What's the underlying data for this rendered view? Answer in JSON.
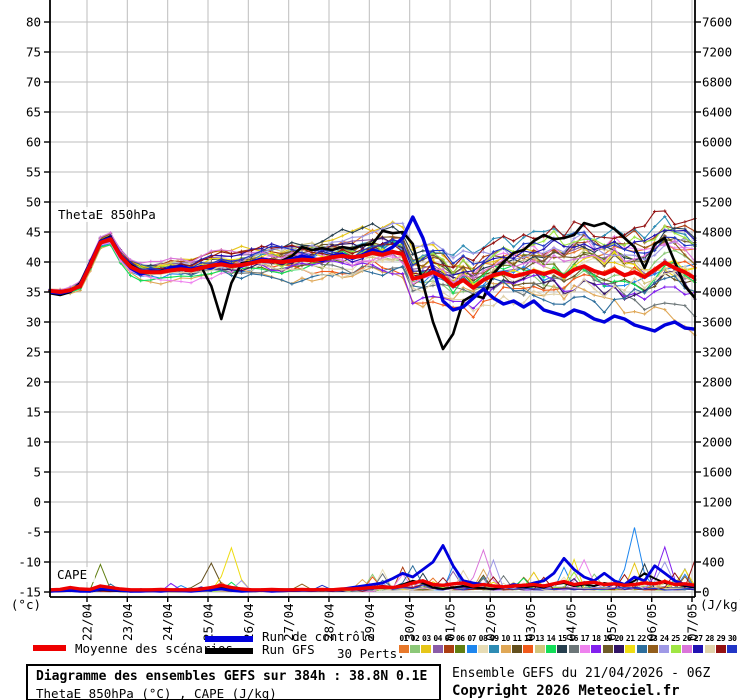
{
  "title_box": {
    "line1": "Diagramme des ensembles GEFS sur 384h : 38.8N 0.1E",
    "line2": "ThetaE 850hPa (°C) , CAPE (J/kg)"
  },
  "credits": {
    "run_info": "Ensemble GEFS du 21/04/2026 - 06Z",
    "copyright": "Copyright 2026 Meteociel.fr"
  },
  "legend": {
    "mean_label": "Moyenne des scénarios",
    "control_label": "Run de contrôle",
    "gfs_label": "Run GFS",
    "perts_label": "30 Perts.",
    "mean_color": "#ee0000",
    "control_color": "#0000dd",
    "gfs_color": "#000000"
  },
  "chart_data": {
    "type": "line",
    "title": "Diagramme des ensembles GEFS sur 384h : 38.8N 0.1E",
    "plot_labels": {
      "left_series": "ThetaE 850hPa",
      "bottom_series": "CAPE"
    },
    "left_axis": {
      "unit": "(°c)",
      "min": -15,
      "max": 80,
      "ticks": [
        80,
        75,
        70,
        65,
        60,
        55,
        50,
        45,
        40,
        35,
        30,
        25,
        20,
        15,
        10,
        5,
        0,
        -5,
        -10,
        -15
      ]
    },
    "right_axis": {
      "unit": "(J/kg)",
      "min": 0,
      "max": 7600,
      "ticks": [
        7600,
        7200,
        6800,
        6400,
        6000,
        5600,
        5200,
        4800,
        4400,
        4000,
        3600,
        3200,
        2800,
        2400,
        2000,
        1600,
        1200,
        800,
        400,
        0
      ]
    },
    "x_labels": [
      "22/04",
      "23/04",
      "24/04",
      "25/04",
      "26/04",
      "27/04",
      "28/04",
      "29/04",
      "30/04",
      "01/05",
      "02/05",
      "03/05",
      "04/05",
      "05/05",
      "06/05",
      "07/05"
    ],
    "steps": 65,
    "grid_color": "#bdbdbd",
    "series": {
      "mean_thetae": [
        35.2,
        35.0,
        35.3,
        36.0,
        39.5,
        43.2,
        43.8,
        41.0,
        39.2,
        38.4,
        38.3,
        38.3,
        38.6,
        38.8,
        38.6,
        39.0,
        39.4,
        39.6,
        39.3,
        39.5,
        39.8,
        40.2,
        40.1,
        40.0,
        40.2,
        40.4,
        40.3,
        40.5,
        40.8,
        41.0,
        40.8,
        41.0,
        41.5,
        41.2,
        41.7,
        41.3,
        37.2,
        37.6,
        38.3,
        37.5,
        36.0,
        37.0,
        35.7,
        37.0,
        37.8,
        38.2,
        37.6,
        38.0,
        38.5,
        38.0,
        38.5,
        37.6,
        38.7,
        39.3,
        38.5,
        38.0,
        38.7,
        37.8,
        38.3,
        37.5,
        38.7,
        39.9,
        39.0,
        38.3,
        37.3
      ],
      "control_thetae": [
        35.0,
        34.8,
        35.2,
        36.2,
        39.8,
        43.4,
        44.0,
        41.2,
        39.0,
        38.0,
        38.5,
        38.3,
        39.0,
        39.3,
        38.8,
        39.2,
        39.0,
        40.0,
        39.5,
        39.3,
        40.0,
        40.5,
        40.2,
        40.0,
        40.5,
        41.0,
        40.6,
        40.2,
        41.0,
        41.3,
        40.6,
        41.2,
        42.0,
        41.5,
        42.5,
        44.0,
        47.5,
        44.0,
        39.0,
        33.5,
        32.0,
        32.5,
        34.0,
        35.5,
        34.0,
        33.0,
        33.5,
        32.5,
        33.5,
        32.0,
        31.5,
        31.0,
        32.0,
        31.5,
        30.5,
        30.0,
        31.0,
        30.5,
        29.5,
        29.0,
        28.5,
        29.5,
        30.0,
        29.0,
        28.8
      ],
      "gfs_thetae": [
        34.8,
        34.5,
        35.0,
        36.5,
        40.0,
        43.5,
        44.2,
        41.0,
        39.5,
        38.5,
        38.2,
        38.5,
        39.0,
        38.8,
        38.5,
        39.2,
        36.0,
        30.5,
        36.5,
        39.8,
        40.0,
        40.5,
        40.3,
        40.2,
        41.0,
        42.5,
        42.0,
        42.3,
        42.0,
        42.5,
        42.2,
        42.8,
        43.0,
        45.2,
        44.8,
        45.0,
        43.0,
        36.5,
        30.0,
        25.5,
        28.0,
        33.5,
        34.5,
        34.0,
        38.0,
        40.0,
        41.5,
        42.0,
        43.5,
        44.5,
        43.8,
        44.0,
        44.5,
        46.5,
        46.0,
        46.5,
        45.5,
        44.0,
        42.5,
        39.0,
        43.0,
        44.0,
        40.0,
        36.0,
        34.0
      ],
      "mean_cape": [
        30,
        35,
        60,
        40,
        35,
        80,
        60,
        40,
        30,
        30,
        30,
        35,
        30,
        30,
        30,
        40,
        60,
        90,
        60,
        40,
        30,
        30,
        35,
        30,
        30,
        35,
        30,
        35,
        30,
        40,
        40,
        50,
        60,
        70,
        60,
        80,
        120,
        150,
        100,
        90,
        110,
        120,
        80,
        100,
        80,
        70,
        80,
        90,
        100,
        80,
        110,
        140,
        100,
        120,
        130,
        100,
        110,
        90,
        100,
        120,
        110,
        140,
        100,
        110,
        90
      ],
      "control_cape": [
        10,
        15,
        20,
        10,
        10,
        40,
        30,
        20,
        10,
        10,
        15,
        10,
        20,
        15,
        10,
        20,
        30,
        40,
        20,
        10,
        15,
        20,
        10,
        15,
        20,
        25,
        20,
        30,
        20,
        40,
        60,
        80,
        100,
        120,
        180,
        250,
        200,
        300,
        400,
        620,
        350,
        150,
        120,
        100,
        80,
        60,
        100,
        80,
        120,
        150,
        250,
        450,
        300,
        200,
        150,
        250,
        150,
        100,
        200,
        150,
        350,
        250,
        150,
        100,
        80
      ],
      "gfs_cape": [
        5,
        10,
        15,
        10,
        5,
        30,
        20,
        10,
        5,
        10,
        10,
        15,
        10,
        10,
        15,
        20,
        40,
        60,
        30,
        10,
        10,
        15,
        10,
        10,
        15,
        20,
        15,
        20,
        15,
        30,
        40,
        50,
        60,
        80,
        60,
        100,
        150,
        120,
        60,
        40,
        60,
        80,
        60,
        50,
        40,
        60,
        80,
        60,
        80,
        60,
        100,
        120,
        80,
        100,
        80,
        120,
        100,
        80,
        150,
        250,
        180,
        120,
        100,
        80,
        60
      ]
    },
    "members": [
      {
        "id": "01",
        "color": "#E8782A"
      },
      {
        "id": "02",
        "color": "#8CC878"
      },
      {
        "id": "03",
        "color": "#E6C619"
      },
      {
        "id": "04",
        "color": "#8B5CA8"
      },
      {
        "id": "05",
        "color": "#AC3E12"
      },
      {
        "id": "06",
        "color": "#617F12"
      },
      {
        "id": "07",
        "color": "#1E86EE"
      },
      {
        "id": "08",
        "color": "#E7DCB5"
      },
      {
        "id": "09",
        "color": "#2E8CB4"
      },
      {
        "id": "10",
        "color": "#DFA756"
      },
      {
        "id": "11",
        "color": "#64501E"
      },
      {
        "id": "12",
        "color": "#F05A1A"
      },
      {
        "id": "13",
        "color": "#D2C67E"
      },
      {
        "id": "14",
        "color": "#12DE58"
      },
      {
        "id": "15",
        "color": "#263F4E"
      },
      {
        "id": "16",
        "color": "#6C7678"
      },
      {
        "id": "17",
        "color": "#EE82EE"
      },
      {
        "id": "18",
        "color": "#8220EE"
      },
      {
        "id": "19",
        "color": "#6E5A28"
      },
      {
        "id": "20",
        "color": "#321566"
      },
      {
        "id": "21",
        "color": "#EEDC12"
      },
      {
        "id": "22",
        "color": "#2E6E9C"
      },
      {
        "id": "23",
        "color": "#935E1C"
      },
      {
        "id": "24",
        "color": "#9F99E6"
      },
      {
        "id": "25",
        "color": "#9FE644"
      },
      {
        "id": "26",
        "color": "#DA74DA"
      },
      {
        "id": "27",
        "color": "#2012B2"
      },
      {
        "id": "28",
        "color": "#E0D2AA"
      },
      {
        "id": "29",
        "color": "#941212"
      },
      {
        "id": "30",
        "color": "#2236C6"
      }
    ],
    "member_gen": {
      "bias_max": 7,
      "walk_decay": 0.93,
      "walk_sigma_start": 0.55,
      "walk_sigma_end": 1.35,
      "clamp_min": 23.5,
      "clamp_max": 50.8,
      "cape_spike_max": 520
    },
    "cape_events": [
      {
        "member": 21,
        "i": 18,
        "v": 590
      },
      {
        "member": 11,
        "i": 16,
        "v": 385
      },
      {
        "member": 1,
        "i": 17,
        "v": 130
      },
      {
        "member": 7,
        "i": 58,
        "v": 860
      },
      {
        "member": 18,
        "i": 61,
        "v": 600
      },
      {
        "member": 26,
        "i": 43,
        "v": 560
      },
      {
        "member": 17,
        "i": 53,
        "v": 430
      },
      {
        "member": 22,
        "i": 36,
        "v": 350
      },
      {
        "member": 24,
        "i": 61,
        "v": 400
      },
      {
        "member": 21,
        "i": 63,
        "v": 300
      }
    ]
  }
}
